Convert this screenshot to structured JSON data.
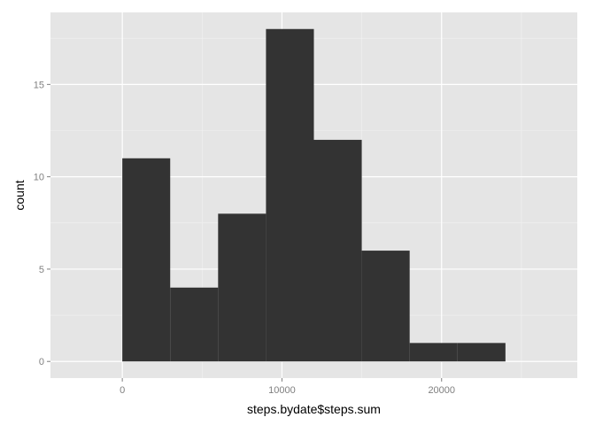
{
  "chart_data": {
    "type": "bar",
    "subtype": "histogram",
    "xlabel": "steps.bydate$steps.sum",
    "ylabel": "count",
    "xlim": [
      -4500,
      28500
    ],
    "ylim": [
      -0.9,
      18.9
    ],
    "x_ticks": [
      0,
      10000,
      20000
    ],
    "x_tick_labels": [
      "0",
      "10000",
      "20000"
    ],
    "y_ticks": [
      0,
      5,
      10,
      15
    ],
    "y_tick_labels": [
      "0",
      "5",
      "10",
      "15"
    ],
    "bins": [
      {
        "x0": 0,
        "x1": 3000,
        "count": 11
      },
      {
        "x0": 3000,
        "x1": 6000,
        "count": 4
      },
      {
        "x0": 6000,
        "x1": 9000,
        "count": 8
      },
      {
        "x0": 9000,
        "x1": 12000,
        "count": 18
      },
      {
        "x0": 12000,
        "x1": 15000,
        "count": 12
      },
      {
        "x0": 15000,
        "x1": 18000,
        "count": 6
      },
      {
        "x0": 18000,
        "x1": 21000,
        "count": 1
      },
      {
        "x0": 21000,
        "x1": 24000,
        "count": 1
      }
    ],
    "grid": true,
    "colors": {
      "panel_background": "#e5e5e5",
      "grid_major": "#ffffff",
      "grid_minor": "#f2f2f2",
      "bar_fill": "#333333",
      "tick_label": "#7f7f7f",
      "axis_title": "#000000"
    }
  }
}
